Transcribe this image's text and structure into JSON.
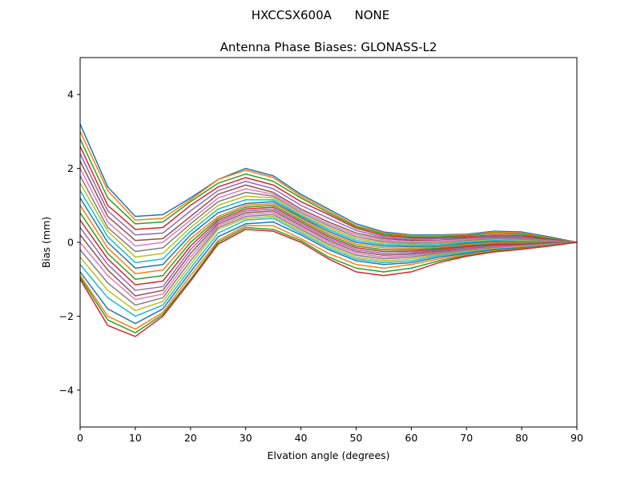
{
  "chart_data": {
    "type": "line",
    "suptitle": "HXCCSX600A      NONE",
    "title": "Antenna Phase Biases: GLONASS-L2",
    "xlabel": "Elvation angle (degrees)",
    "ylabel": "Bias (mm)",
    "xlim": [
      0,
      90
    ],
    "ylim": [
      -5,
      5
    ],
    "xticks": [
      0,
      10,
      20,
      30,
      40,
      50,
      60,
      70,
      80,
      90
    ],
    "xtick_labels": [
      "0",
      "10",
      "20",
      "30",
      "40",
      "50",
      "60",
      "70",
      "80",
      "90"
    ],
    "yticks": [
      -4,
      -2,
      0,
      2,
      4
    ],
    "ytick_labels": [
      "−4",
      "−2",
      "0",
      "2",
      "4"
    ],
    "grid": false,
    "legend": "none",
    "x": [
      0,
      5,
      10,
      15,
      20,
      25,
      30,
      35,
      40,
      45,
      50,
      55,
      60,
      65,
      70,
      75,
      80,
      85,
      90
    ],
    "series": [
      {
        "color": "#1f77b4",
        "values": [
          3.2,
          1.5,
          0.7,
          0.75,
          1.2,
          1.7,
          2.0,
          1.8,
          1.3,
          0.9,
          0.5,
          0.28,
          0.2,
          0.2,
          0.22,
          0.3,
          0.28,
          0.15,
          0.0
        ]
      },
      {
        "color": "#ff7f0e",
        "values": [
          3.0,
          1.4,
          0.6,
          0.65,
          1.15,
          1.7,
          1.95,
          1.75,
          1.25,
          0.85,
          0.45,
          0.25,
          0.18,
          0.18,
          0.2,
          0.28,
          0.25,
          0.12,
          0.0
        ]
      },
      {
        "color": "#2ca02c",
        "values": [
          2.8,
          1.2,
          0.5,
          0.55,
          1.1,
          1.6,
          1.85,
          1.65,
          1.2,
          0.8,
          0.42,
          0.22,
          0.15,
          0.15,
          0.18,
          0.25,
          0.22,
          0.1,
          0.0
        ]
      },
      {
        "color": "#d62728",
        "values": [
          2.6,
          1.0,
          0.35,
          0.4,
          1.0,
          1.5,
          1.75,
          1.55,
          1.1,
          0.75,
          0.38,
          0.18,
          0.12,
          0.12,
          0.15,
          0.2,
          0.18,
          0.08,
          0.0
        ]
      },
      {
        "color": "#9467bd",
        "values": [
          2.4,
          0.85,
          0.2,
          0.25,
          0.85,
          1.4,
          1.65,
          1.45,
          1.0,
          0.65,
          0.32,
          0.14,
          0.08,
          0.1,
          0.12,
          0.18,
          0.15,
          0.06,
          0.0
        ]
      },
      {
        "color": "#8c564b",
        "values": [
          2.2,
          0.7,
          0.05,
          0.1,
          0.7,
          1.3,
          1.55,
          1.35,
          0.9,
          0.55,
          0.25,
          0.1,
          0.05,
          0.06,
          0.1,
          0.15,
          0.12,
          0.05,
          0.0
        ]
      },
      {
        "color": "#e377c2",
        "values": [
          2.0,
          0.55,
          -0.1,
          0.0,
          0.6,
          1.2,
          1.45,
          1.3,
          0.85,
          0.5,
          0.2,
          0.06,
          0.02,
          0.04,
          0.08,
          0.12,
          0.1,
          0.04,
          0.0
        ]
      },
      {
        "color": "#7f7f7f",
        "values": [
          1.8,
          0.4,
          -0.25,
          -0.15,
          0.5,
          1.1,
          1.35,
          1.25,
          0.8,
          0.45,
          0.15,
          0.02,
          -0.02,
          0.0,
          0.05,
          0.1,
          0.08,
          0.03,
          0.0
        ]
      },
      {
        "color": "#bcbd22",
        "values": [
          1.6,
          0.3,
          -0.4,
          -0.3,
          0.4,
          1.0,
          1.25,
          1.2,
          0.75,
          0.4,
          0.1,
          -0.02,
          -0.05,
          -0.03,
          0.02,
          0.07,
          0.05,
          0.02,
          0.0
        ]
      },
      {
        "color": "#17becf",
        "values": [
          1.4,
          0.15,
          -0.55,
          -0.45,
          0.3,
          0.9,
          1.15,
          1.15,
          0.72,
          0.35,
          0.05,
          -0.06,
          -0.08,
          -0.06,
          0.0,
          0.05,
          0.03,
          0.01,
          0.0
        ]
      },
      {
        "color": "#1f77b4",
        "values": [
          1.2,
          0.0,
          -0.7,
          -0.6,
          0.2,
          0.8,
          1.05,
          1.1,
          0.68,
          0.3,
          0.0,
          -0.1,
          -0.12,
          -0.1,
          -0.03,
          0.02,
          0.0,
          0.0,
          0.0
        ]
      },
      {
        "color": "#ff7f0e",
        "values": [
          1.0,
          -0.15,
          -0.85,
          -0.75,
          0.1,
          0.7,
          1.0,
          1.05,
          0.65,
          0.25,
          -0.05,
          -0.15,
          -0.16,
          -0.13,
          -0.06,
          -0.01,
          -0.02,
          -0.01,
          0.0
        ]
      },
      {
        "color": "#2ca02c",
        "values": [
          0.8,
          -0.3,
          -1.0,
          -0.9,
          0.0,
          0.65,
          0.95,
          1.0,
          0.6,
          0.2,
          -0.1,
          -0.2,
          -0.2,
          -0.16,
          -0.09,
          -0.04,
          -0.04,
          -0.02,
          0.0
        ]
      },
      {
        "color": "#d62728",
        "values": [
          0.6,
          -0.45,
          -1.15,
          -1.05,
          -0.1,
          0.6,
          0.9,
          0.95,
          0.55,
          0.15,
          -0.15,
          -0.25,
          -0.24,
          -0.19,
          -0.12,
          -0.06,
          -0.05,
          -0.02,
          0.0
        ]
      },
      {
        "color": "#9467bd",
        "values": [
          0.4,
          -0.6,
          -1.3,
          -1.2,
          -0.2,
          0.55,
          0.85,
          0.9,
          0.5,
          0.1,
          -0.2,
          -0.3,
          -0.28,
          -0.22,
          -0.15,
          -0.09,
          -0.07,
          -0.03,
          0.0
        ]
      },
      {
        "color": "#8c564b",
        "values": [
          0.2,
          -0.75,
          -1.45,
          -1.3,
          -0.3,
          0.5,
          0.8,
          0.85,
          0.45,
          0.05,
          -0.25,
          -0.35,
          -0.32,
          -0.25,
          -0.18,
          -0.11,
          -0.08,
          -0.04,
          0.0
        ]
      },
      {
        "color": "#e377c2",
        "values": [
          0.0,
          -0.9,
          -1.55,
          -1.4,
          -0.4,
          0.45,
          0.75,
          0.8,
          0.4,
          0.0,
          -0.3,
          -0.4,
          -0.36,
          -0.28,
          -0.2,
          -0.13,
          -0.1,
          -0.05,
          0.0
        ]
      },
      {
        "color": "#7f7f7f",
        "values": [
          -0.2,
          -1.1,
          -1.7,
          -1.5,
          -0.5,
          0.4,
          0.7,
          0.75,
          0.35,
          -0.05,
          -0.35,
          -0.45,
          -0.4,
          -0.3,
          -0.22,
          -0.15,
          -0.11,
          -0.05,
          0.0
        ]
      },
      {
        "color": "#bcbd22",
        "values": [
          -0.4,
          -1.3,
          -1.85,
          -1.6,
          -0.6,
          0.35,
          0.65,
          0.7,
          0.3,
          -0.1,
          -0.4,
          -0.5,
          -0.45,
          -0.33,
          -0.25,
          -0.17,
          -0.12,
          -0.06,
          0.0
        ]
      },
      {
        "color": "#17becf",
        "values": [
          -0.6,
          -1.5,
          -2.0,
          -1.7,
          -0.7,
          0.25,
          0.6,
          0.65,
          0.25,
          -0.15,
          -0.45,
          -0.55,
          -0.5,
          -0.36,
          -0.27,
          -0.19,
          -0.14,
          -0.07,
          0.0
        ]
      },
      {
        "color": "#1f77b4",
        "values": [
          -0.8,
          -1.8,
          -2.2,
          -1.8,
          -0.8,
          0.15,
          0.5,
          0.55,
          0.2,
          -0.2,
          -0.5,
          -0.6,
          -0.55,
          -0.4,
          -0.3,
          -0.2,
          -0.15,
          -0.08,
          0.0
        ]
      },
      {
        "color": "#ff7f0e",
        "values": [
          -0.9,
          -2.0,
          -2.35,
          -1.9,
          -0.9,
          0.05,
          0.45,
          0.45,
          0.1,
          -0.3,
          -0.6,
          -0.7,
          -0.6,
          -0.45,
          -0.33,
          -0.23,
          -0.17,
          -0.09,
          0.0
        ]
      },
      {
        "color": "#2ca02c",
        "values": [
          -0.95,
          -2.1,
          -2.45,
          -1.95,
          -1.0,
          0.0,
          0.4,
          0.35,
          0.05,
          -0.4,
          -0.7,
          -0.8,
          -0.7,
          -0.5,
          -0.36,
          -0.25,
          -0.18,
          -0.1,
          0.0
        ]
      },
      {
        "color": "#d62728",
        "values": [
          -1.0,
          -2.25,
          -2.55,
          -2.0,
          -1.05,
          -0.05,
          0.35,
          0.3,
          0.0,
          -0.45,
          -0.8,
          -0.9,
          -0.8,
          -0.55,
          -0.38,
          -0.26,
          -0.19,
          -0.1,
          0.0
        ]
      }
    ]
  }
}
